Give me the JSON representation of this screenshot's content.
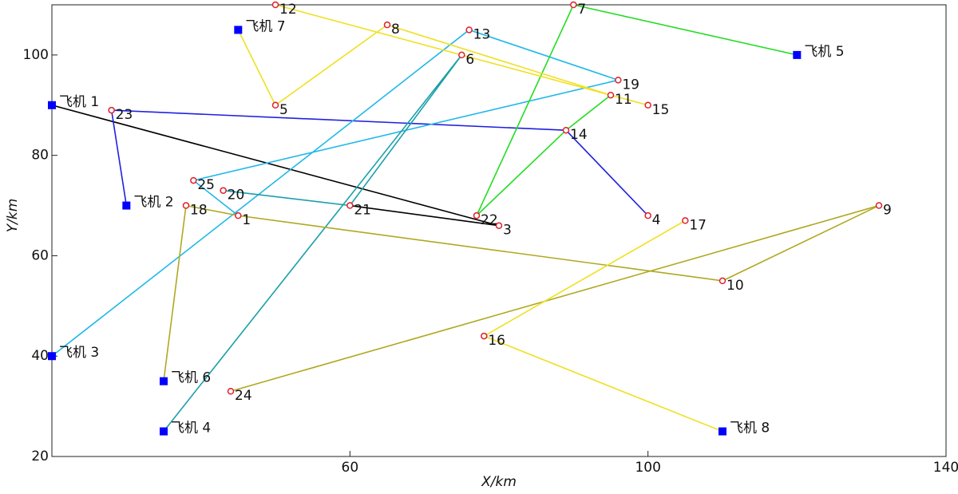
{
  "chart_data": {
    "type": "route",
    "xlabel": "X/km",
    "ylabel": "Y/km",
    "xlim": [
      20,
      140
    ],
    "ylim": [
      20,
      110
    ],
    "xticks": [
      60,
      100,
      140
    ],
    "yticks": [
      20,
      40,
      60,
      80,
      100
    ],
    "aircraft": {
      "color": "#0000ff",
      "labels": [
        "飞机 1",
        "飞机 2",
        "飞机 3",
        "飞机 4",
        "飞机 5",
        "飞机 6",
        "飞机 7",
        "飞机 8"
      ],
      "x": [
        20,
        30,
        20,
        35,
        120,
        35,
        45,
        110
      ],
      "y": [
        90,
        70,
        40,
        25,
        100,
        35,
        105,
        25
      ]
    },
    "targets": {
      "color": "#e0202a",
      "labels": [
        "1",
        "3",
        "4",
        "5",
        "6",
        "7",
        "8",
        "9",
        "10",
        "11",
        "12",
        "13",
        "14",
        "15",
        "16",
        "17",
        "18",
        "19",
        "20",
        "21",
        "22",
        "23",
        "24",
        "25"
      ],
      "x": [
        45,
        80,
        100,
        50,
        75,
        90,
        65,
        131,
        110,
        95,
        50,
        76,
        89,
        100,
        78,
        105,
        38,
        96,
        43,
        60,
        77,
        28,
        44,
        39
      ],
      "y": [
        68,
        66,
        68,
        90,
        100,
        110,
        106,
        70,
        55,
        92,
        110,
        105,
        85,
        90,
        44,
        67,
        70,
        95,
        73,
        70,
        68,
        89,
        33,
        75
      ]
    },
    "routes": [
      {
        "color": "#000000",
        "stops": [
          "飞机 1",
          "3",
          "21"
        ]
      },
      {
        "color": "#2020e0",
        "stops": [
          "飞机 2",
          "23",
          "14",
          "4"
        ]
      },
      {
        "color": "#20b8e8",
        "stops": [
          "飞机 3",
          "13",
          "19",
          "25",
          "1"
        ]
      },
      {
        "color": "#1aa0a8",
        "stops": [
          "飞机 4",
          "6",
          "21",
          "20"
        ]
      },
      {
        "color": "#22dd22",
        "stops": [
          "飞机 5",
          "7",
          "22",
          "14",
          "11"
        ]
      },
      {
        "color": "#b0a820",
        "stops": [
          "飞机 6",
          "18",
          "1",
          "10",
          "9",
          "24"
        ]
      },
      {
        "color": "#f0e020",
        "stops": [
          "飞机 7",
          "5",
          "8",
          "11",
          "12",
          "15"
        ]
      },
      {
        "color": "#f0e020",
        "stops": [
          "飞机 8",
          "16",
          "17"
        ]
      }
    ]
  }
}
